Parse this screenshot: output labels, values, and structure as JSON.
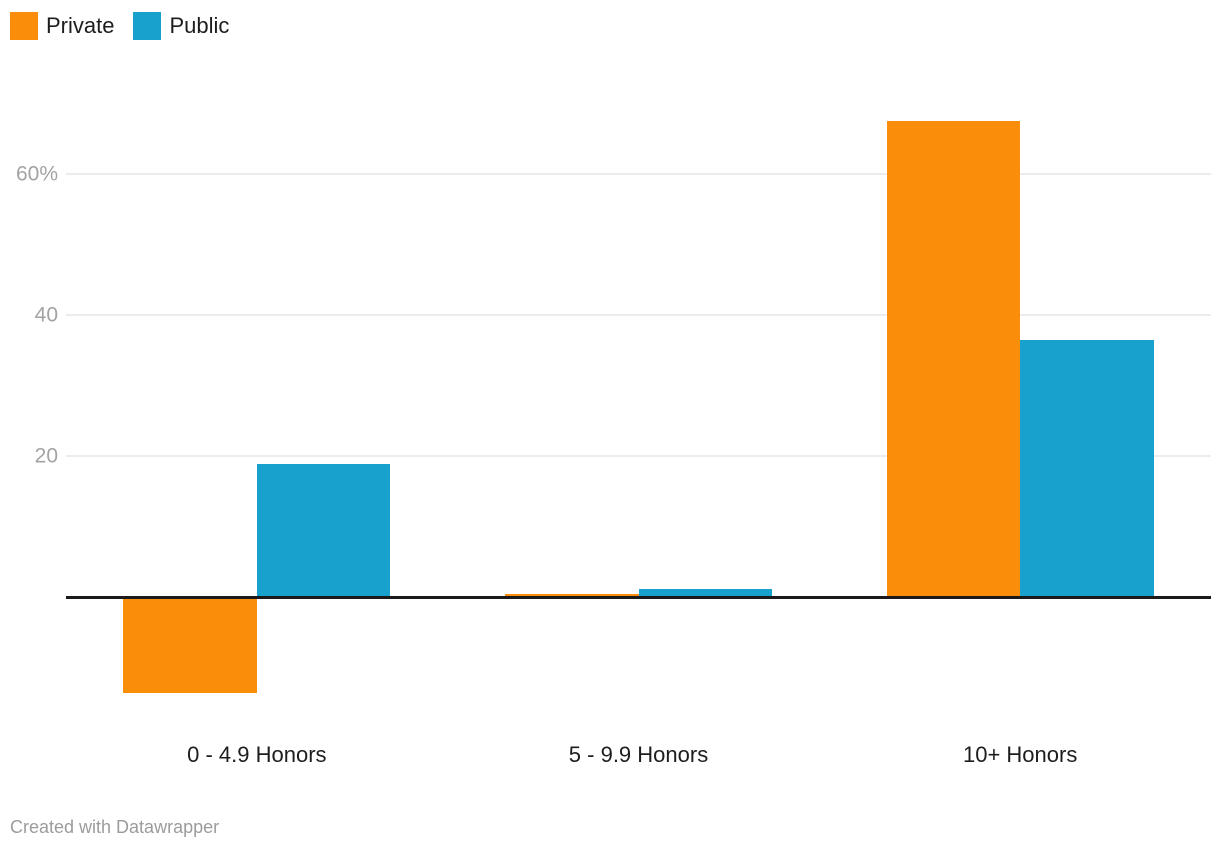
{
  "chart_data": {
    "type": "bar",
    "title": "",
    "xlabel": "",
    "ylabel": "",
    "categories": [
      "0 - 4.9 Honors",
      "5 - 9.9 Honors",
      "10+ Honors"
    ],
    "series": [
      {
        "name": "Private",
        "color": "#FA8E0B",
        "values": [
          -13.6,
          0.4,
          67.5
        ]
      },
      {
        "name": "Public",
        "color": "#18A1CD",
        "values": [
          18.9,
          1.1,
          36.4
        ]
      }
    ],
    "y_ticks": [
      {
        "value": 20,
        "label": "20"
      },
      {
        "value": 40,
        "label": "40"
      },
      {
        "value": 60,
        "label": "60%"
      }
    ],
    "ylim": [
      -17,
      72
    ],
    "grid": true,
    "baseline_value": 0,
    "legend_position": "top-left",
    "attribution": "Created with Datawrapper",
    "colors": {
      "grid": "#ECECEC",
      "baseline": "#1A1A1A",
      "axis_text": "#A3A3A3",
      "category_text": "#1D1D1D",
      "attribution_text": "#9C9C9C"
    }
  }
}
